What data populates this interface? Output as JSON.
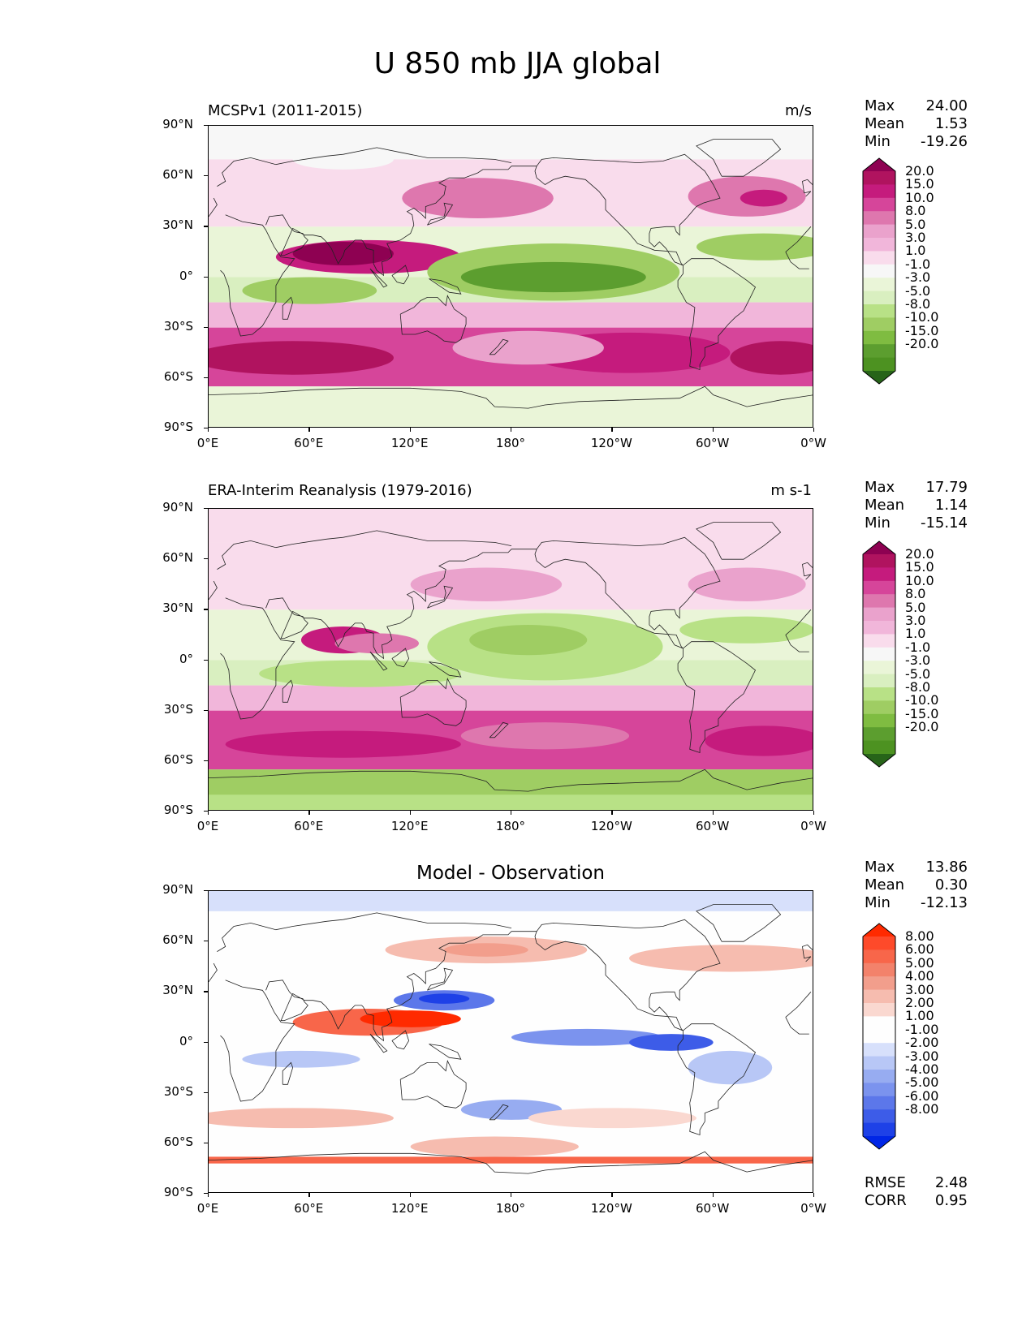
{
  "figure": {
    "title": "U 850 mb JJA global"
  },
  "axes": {
    "lat_ticks": [
      "90°N",
      "60°N",
      "30°N",
      "0°",
      "30°S",
      "60°S",
      "90°S"
    ],
    "lon_ticks": [
      "0°E",
      "60°E",
      "120°E",
      "180°",
      "120°W",
      "60°W",
      "0°W"
    ]
  },
  "panels": [
    {
      "title": "MCSPv1 (2011-2015)",
      "units": "m/s",
      "stats": [
        {
          "label": "Max",
          "value": "24.00"
        },
        {
          "label": "Mean",
          "value": "1.53"
        },
        {
          "label": "Min",
          "value": "-19.26"
        }
      ],
      "colorbar": {
        "levels": [
          "20.0",
          "15.0",
          "10.0",
          "8.0",
          "5.0",
          "3.0",
          "1.0",
          "-1.0",
          "-3.0",
          "-5.0",
          "-8.0",
          "-10.0",
          "-15.0",
          "-20.0"
        ],
        "colors": [
          "#8e0152",
          "#b0135f",
          "#c51b7d",
          "#d6459a",
          "#de77ae",
          "#eaa2cc",
          "#f1b6da",
          "#f9dcec",
          "#f7f7f7",
          "#eaf5d8",
          "#d9efc0",
          "#b8e186",
          "#9fcd63",
          "#7fbc41",
          "#5c9e2f",
          "#4d9221",
          "#276419"
        ]
      }
    },
    {
      "title": "ERA-Interim Reanalysis (1979-2016)",
      "units": "m s-1",
      "stats": [
        {
          "label": "Max",
          "value": "17.79"
        },
        {
          "label": "Mean",
          "value": "1.14"
        },
        {
          "label": "Min",
          "value": "-15.14"
        }
      ],
      "colorbar": {
        "levels": [
          "20.0",
          "15.0",
          "10.0",
          "8.0",
          "5.0",
          "3.0",
          "1.0",
          "-1.0",
          "-3.0",
          "-5.0",
          "-8.0",
          "-10.0",
          "-15.0",
          "-20.0"
        ],
        "colors": [
          "#8e0152",
          "#b0135f",
          "#c51b7d",
          "#d6459a",
          "#de77ae",
          "#eaa2cc",
          "#f1b6da",
          "#f9dcec",
          "#f7f7f7",
          "#eaf5d8",
          "#d9efc0",
          "#b8e186",
          "#9fcd63",
          "#7fbc41",
          "#5c9e2f",
          "#4d9221",
          "#276419"
        ]
      }
    },
    {
      "title": "Model - Observation",
      "units": "",
      "stats": [
        {
          "label": "Max",
          "value": "13.86"
        },
        {
          "label": "Mean",
          "value": "0.30"
        },
        {
          "label": "Min",
          "value": "-12.13"
        }
      ],
      "extra_stats": [
        {
          "label": "RMSE",
          "value": "2.48"
        },
        {
          "label": "CORR",
          "value": "0.95"
        }
      ],
      "colorbar": {
        "levels": [
          "8.00",
          "6.00",
          "5.00",
          "4.00",
          "3.00",
          "2.00",
          "1.00",
          "-1.00",
          "-2.00",
          "-3.00",
          "-4.00",
          "-5.00",
          "-6.00",
          "-8.00"
        ],
        "colors": [
          "#ff2a00",
          "#fe4a2a",
          "#f8664a",
          "#f3826b",
          "#f29e8c",
          "#f6bcaf",
          "#fad8d0",
          "#fefefe",
          "#fefefe",
          "#d7e0fb",
          "#b8c7f6",
          "#97acf1",
          "#7b93ee",
          "#5c77ea",
          "#3d5ce8",
          "#1e41e7",
          "#0026e6"
        ]
      }
    }
  ]
}
